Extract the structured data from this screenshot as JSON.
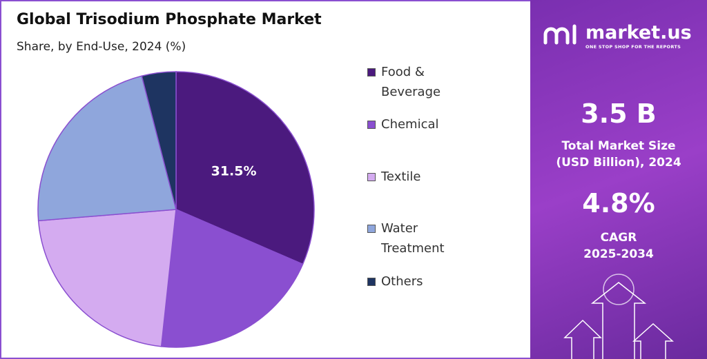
{
  "chart_data": {
    "type": "pie",
    "title": "Global Trisodium Phosphate Market",
    "subtitle": "Share, by End-Use, 2024 (%)",
    "categories": [
      "Food & Beverage",
      "Chemical",
      "Textile",
      "Water Treatment",
      "Others"
    ],
    "values": [
      31.5,
      20.2,
      22,
      22.3,
      4
    ],
    "value_labels": [
      "31.5%",
      null,
      null,
      null,
      null
    ],
    "colors": [
      "#4b1a7e",
      "#8a4fd0",
      "#d4abf0",
      "#8fa6dc",
      "#1e3461"
    ]
  },
  "panel": {
    "brand": "market.us",
    "tagline": "ONE STOP SHOP FOR THE REPORTS",
    "market_size": "3.5 B",
    "market_size_label": [
      "Total Market Size",
      "(USD Billion), 2024"
    ],
    "cagr": "4.8%",
    "cagr_label": [
      "CAGR",
      "2025-2034"
    ]
  }
}
